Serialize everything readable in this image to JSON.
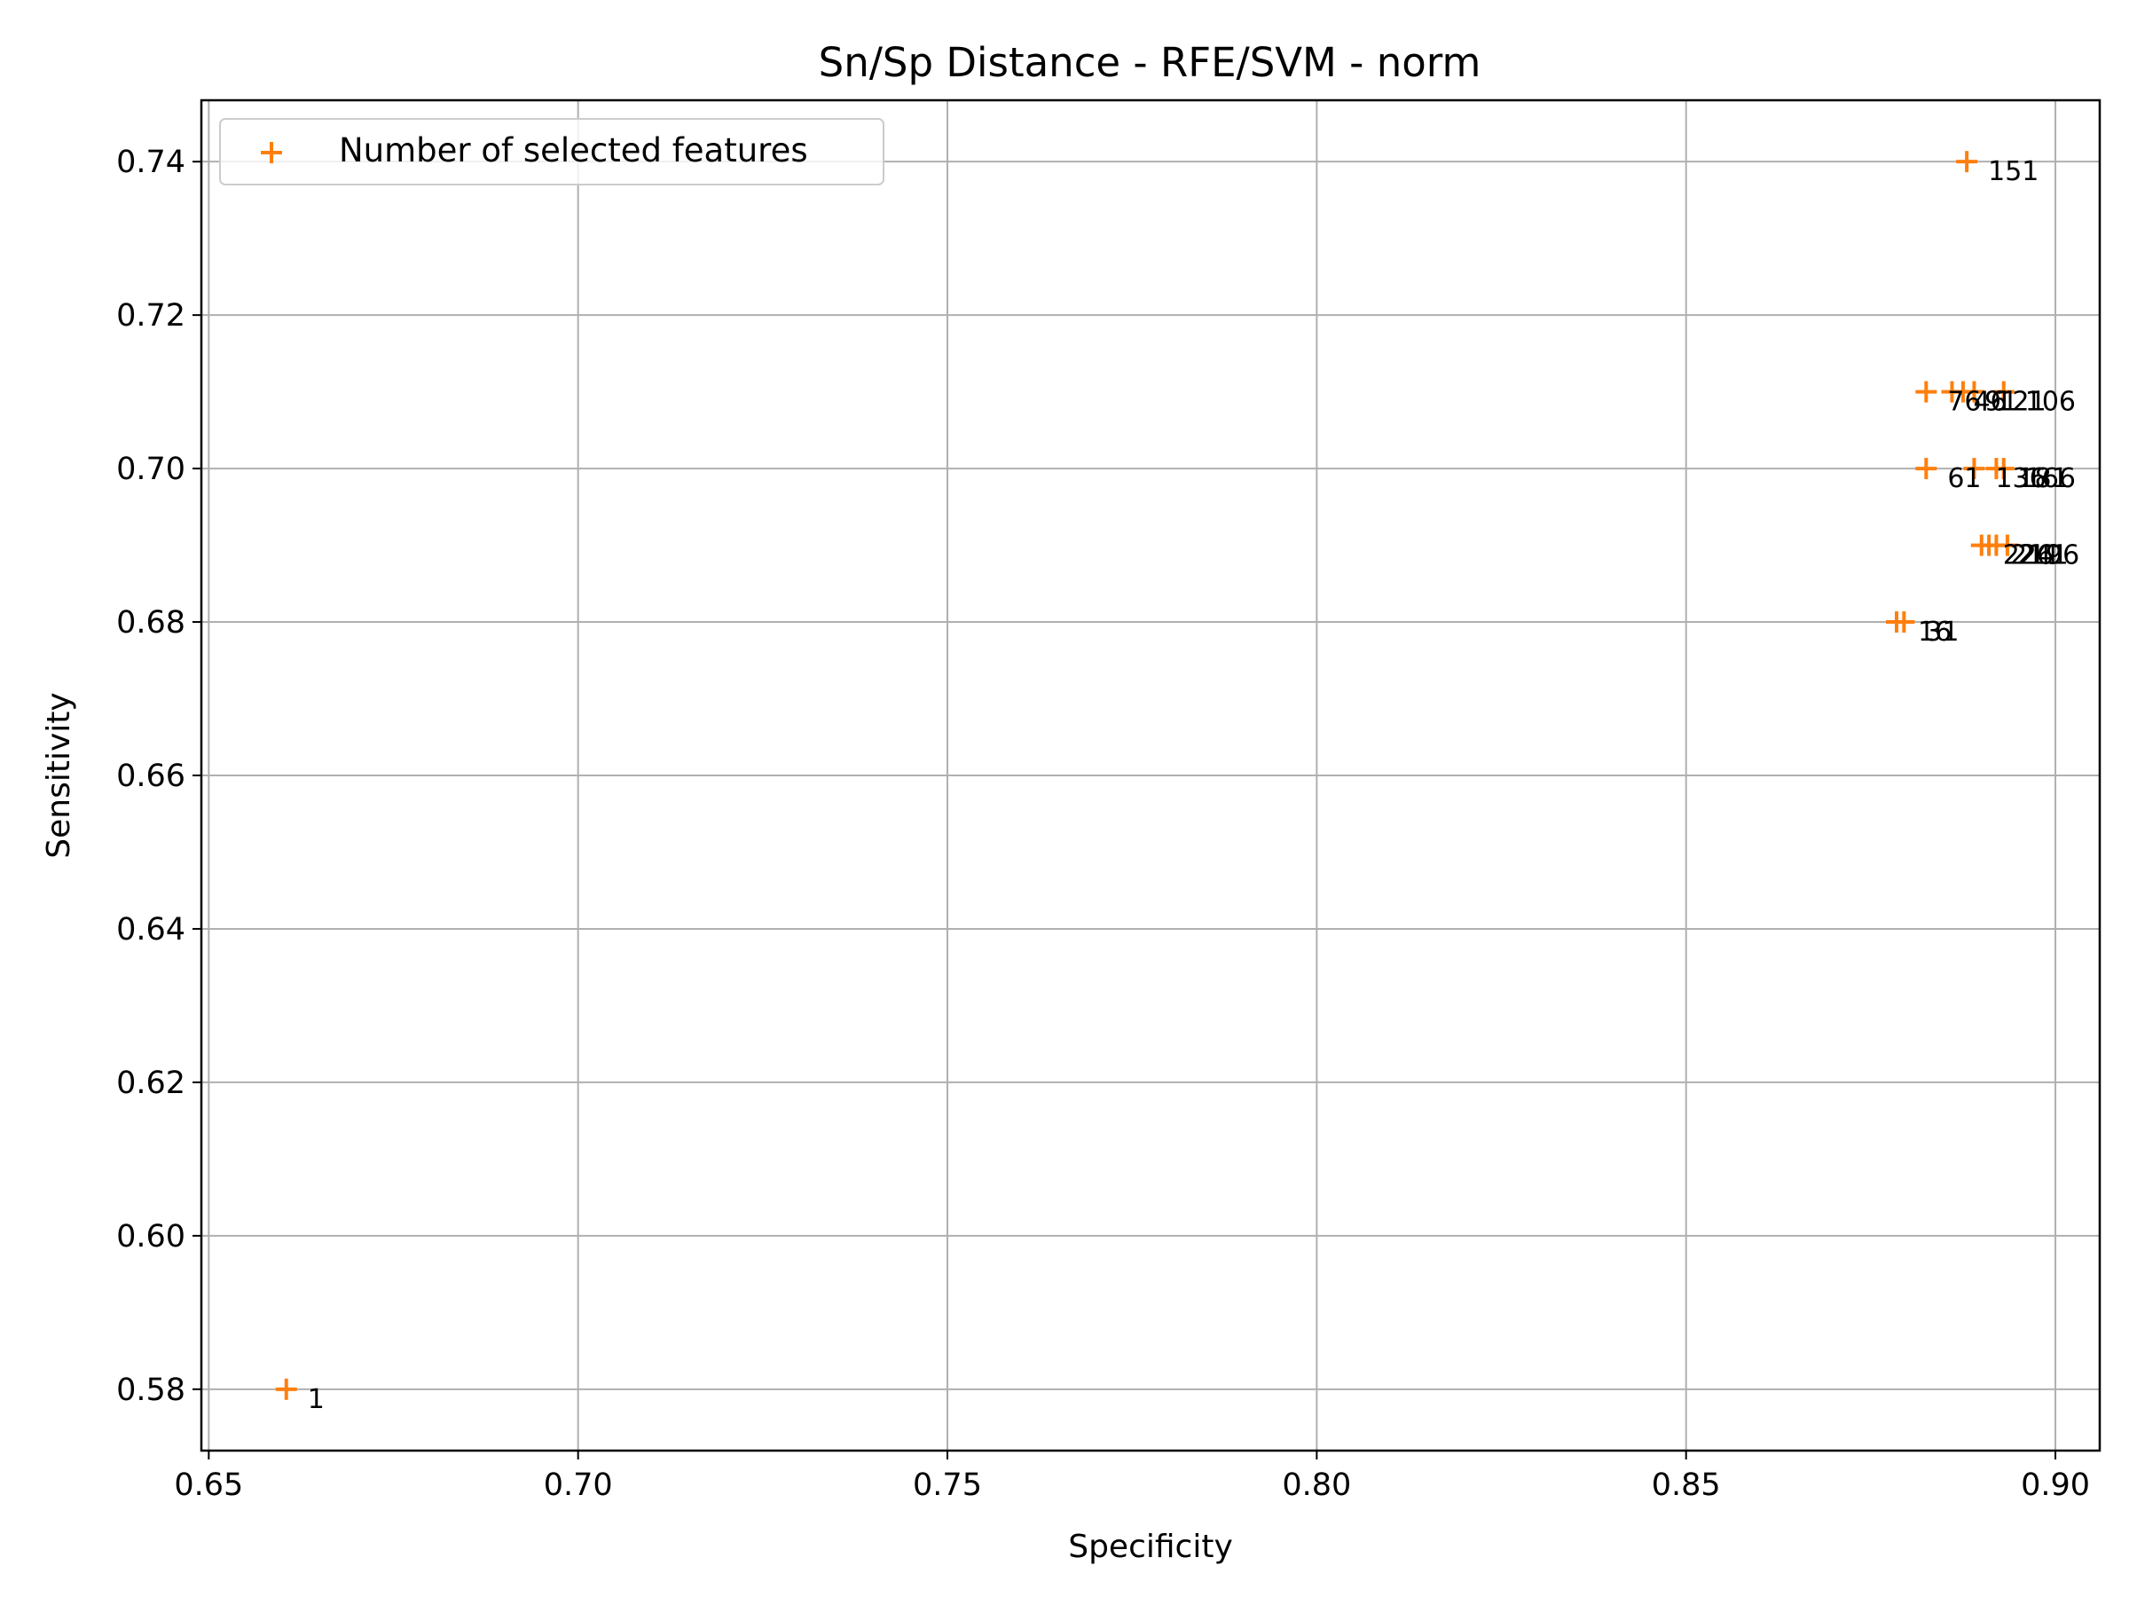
{
  "chart_data": {
    "type": "scatter",
    "title": "Sn/Sp Distance - RFE/SVM - norm",
    "xlabel": "Specificity",
    "ylabel": "Sensitivity",
    "xlim": [
      0.649,
      0.906
    ],
    "ylim": [
      0.572,
      0.748
    ],
    "xticks": [
      0.65,
      0.7,
      0.75,
      0.8,
      0.85,
      0.9
    ],
    "yticks": [
      0.58,
      0.6,
      0.62,
      0.64,
      0.66,
      0.68,
      0.7,
      0.72,
      0.74
    ],
    "xtick_labels": [
      "0.65",
      "0.70",
      "0.75",
      "0.80",
      "0.85",
      "0.90"
    ],
    "ytick_labels": [
      "0.58",
      "0.60",
      "0.62",
      "0.64",
      "0.66",
      "0.68",
      "0.70",
      "0.72",
      "0.74"
    ],
    "grid": true,
    "legend_position": "upper-left",
    "marker": "+",
    "color": "#ff7f0e",
    "series": [
      {
        "name": "Number of selected features",
        "points": [
          {
            "x": 0.6605,
            "y": 0.58,
            "label": "1"
          },
          {
            "x": 0.8785,
            "y": 0.68,
            "label": "16"
          },
          {
            "x": 0.8795,
            "y": 0.68,
            "label": "31"
          },
          {
            "x": 0.8825,
            "y": 0.7,
            "label": "61"
          },
          {
            "x": 0.8825,
            "y": 0.71,
            "label": "76"
          },
          {
            "x": 0.886,
            "y": 0.71,
            "label": "46"
          },
          {
            "x": 0.8875,
            "y": 0.71,
            "label": "91"
          },
          {
            "x": 0.888,
            "y": 0.74,
            "label": "151"
          },
          {
            "x": 0.889,
            "y": 0.7,
            "label": "136"
          },
          {
            "x": 0.889,
            "y": 0.71,
            "label": "121"
          },
          {
            "x": 0.89,
            "y": 0.69,
            "label": "226"
          },
          {
            "x": 0.891,
            "y": 0.69,
            "label": "211"
          },
          {
            "x": 0.892,
            "y": 0.7,
            "label": "181"
          },
          {
            "x": 0.892,
            "y": 0.69,
            "label": "241"
          },
          {
            "x": 0.893,
            "y": 0.7,
            "label": "166"
          },
          {
            "x": 0.893,
            "y": 0.71,
            "label": "106"
          },
          {
            "x": 0.8935,
            "y": 0.69,
            "label": "196"
          }
        ]
      }
    ]
  }
}
